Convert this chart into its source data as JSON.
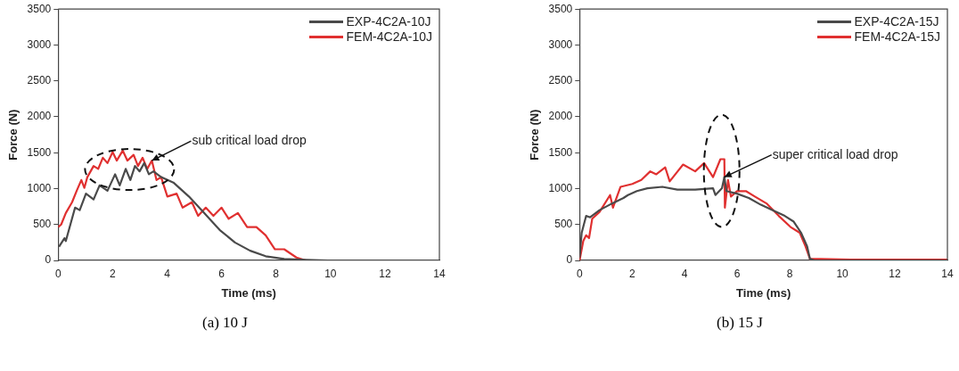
{
  "chart_data": [
    {
      "type": "line",
      "title": "(a) 10 J",
      "xlabel": "Time (ms)",
      "ylabel": "Force (N)",
      "xlim": [
        0,
        14
      ],
      "xticks": [
        0,
        2,
        4,
        6,
        8,
        10,
        12,
        14
      ],
      "ylim": [
        0,
        3500
      ],
      "yticks": [
        0,
        500,
        1000,
        1500,
        2000,
        2500,
        3000,
        3500
      ],
      "grid": false,
      "legend": "top right",
      "marker": "none",
      "line_style": "solid",
      "annotations": [
        {
          "text": "sub critical load drop",
          "x": 3.44,
          "y": 1390
        }
      ],
      "series": [
        {
          "name": "EXP-4C2A-10J",
          "color": "#4a4a4a",
          "x": [
            0.03,
            0.23,
            0.28,
            0.62,
            0.79,
            1.02,
            1.3,
            1.52,
            1.81,
            2.09,
            2.26,
            2.48,
            2.65,
            2.82,
            2.99,
            3.16,
            3.33,
            3.5,
            3.78,
            4.23,
            4.8,
            5.36,
            5.93,
            6.49,
            7.05,
            7.62,
            8.3,
            9.09,
            9.9,
            14
          ],
          "values": [
            190,
            310,
            270,
            735,
            700,
            930,
            850,
            1045,
            970,
            1200,
            1045,
            1275,
            1120,
            1315,
            1240,
            1355,
            1200,
            1240,
            1160,
            1085,
            890,
            660,
            425,
            250,
            135,
            58,
            20,
            8,
            0,
            0
          ]
        },
        {
          "name": "FEM-4C2A-10J",
          "color": "#e03030",
          "x": [
            0,
            0.11,
            0.28,
            0.51,
            0.68,
            0.85,
            0.96,
            1.07,
            1.3,
            1.47,
            1.64,
            1.81,
            2.0,
            2.15,
            2.37,
            2.54,
            2.77,
            2.93,
            3.1,
            3.27,
            3.44,
            3.61,
            3.78,
            4.01,
            4.35,
            4.57,
            4.91,
            5.14,
            5.42,
            5.7,
            6.0,
            6.26,
            6.6,
            6.94,
            7.28,
            7.62,
            7.96,
            8.3,
            8.75,
            9.09
          ],
          "values": [
            465,
            500,
            660,
            810,
            970,
            1120,
            1010,
            1160,
            1315,
            1275,
            1430,
            1355,
            1510,
            1390,
            1530,
            1390,
            1470,
            1315,
            1430,
            1275,
            1390,
            1120,
            1160,
            890,
            930,
            735,
            810,
            620,
            735,
            620,
            735,
            580,
            660,
            465,
            465,
            350,
            155,
            155,
            40,
            0
          ]
        }
      ]
    },
    {
      "type": "line",
      "title": "(b) 15 J",
      "xlabel": "Time (ms)",
      "ylabel": "Force (N)",
      "xlim": [
        0,
        14
      ],
      "xticks": [
        0,
        2,
        4,
        6,
        8,
        10,
        12,
        14
      ],
      "ylim": [
        0,
        3500
      ],
      "yticks": [
        0,
        500,
        1000,
        1500,
        2000,
        2500,
        3000,
        3500
      ],
      "grid": false,
      "legend": "top right",
      "marker": "none",
      "line_style": "solid",
      "annotations": [
        {
          "text": "super critical load drop",
          "x": 5.51,
          "y": 1160
        }
      ],
      "series": [
        {
          "name": "EXP-4C2A-15J",
          "color": "#4a4a4a",
          "x": [
            0,
            0.08,
            0.25,
            0.4,
            0.76,
            1.22,
            1.67,
            1.84,
            2.18,
            2.58,
            3.15,
            3.72,
            4.4,
            5.08,
            5.17,
            5.42,
            5.51,
            5.59,
            5.99,
            6.44,
            6.9,
            7.35,
            7.81,
            8.15,
            8.43,
            8.66,
            8.77,
            8.94,
            14
          ],
          "values": [
            40,
            385,
            620,
            600,
            700,
            790,
            870,
            910,
            965,
            1005,
            1025,
            985,
            985,
            1005,
            910,
            1005,
            1160,
            965,
            930,
            870,
            775,
            700,
            620,
            540,
            385,
            195,
            20,
            0,
            0
          ]
        },
        {
          "name": "FEM-4C2A-15J",
          "color": "#e03030",
          "x": [
            0,
            0.14,
            0.25,
            0.36,
            0.48,
            0.76,
            1.16,
            1.27,
            1.56,
            2.01,
            2.35,
            2.69,
            2.92,
            3.26,
            3.43,
            3.94,
            4.4,
            4.74,
            5.08,
            5.36,
            5.51,
            5.53,
            5.65,
            5.76,
            5.99,
            6.33,
            6.67,
            7.13,
            7.58,
            8.03,
            8.38,
            8.6,
            8.77,
            9.17,
            10.3,
            12.0,
            14
          ],
          "values": [
            0,
            270,
            350,
            310,
            580,
            675,
            910,
            735,
            1025,
            1065,
            1120,
            1240,
            1200,
            1295,
            1100,
            1335,
            1240,
            1355,
            1160,
            1410,
            1410,
            735,
            1120,
            890,
            965,
            965,
            890,
            790,
            620,
            465,
            385,
            195,
            20,
            20,
            10,
            10,
            10
          ]
        }
      ]
    }
  ]
}
